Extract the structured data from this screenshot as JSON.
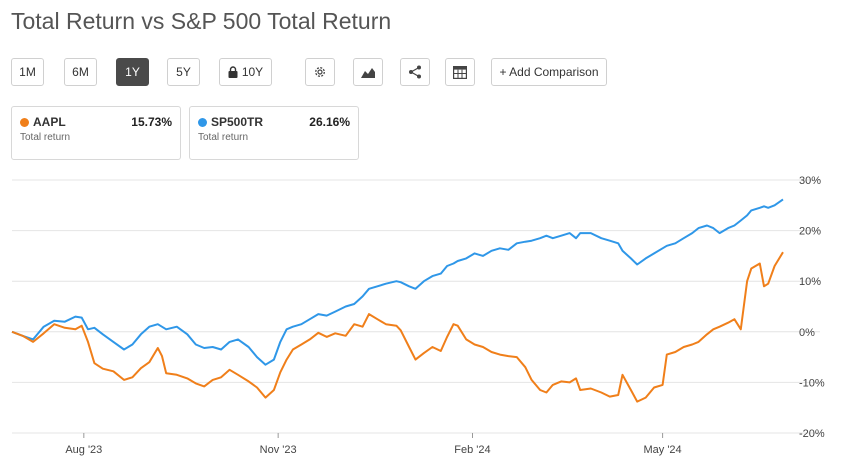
{
  "title": "Total Return vs S&P 500 Total Return",
  "toolbar": {
    "ranges": [
      "1M",
      "6M",
      "1Y",
      "5Y",
      "10Y"
    ],
    "active_range": "1Y",
    "locked_range": "10Y",
    "add_comparison_label": "+ Add Comparison",
    "icons": [
      "gear-icon",
      "chart-type-icon",
      "share-icon",
      "table-icon",
      "lock-icon"
    ]
  },
  "legend": [
    {
      "ticker": "AAPL",
      "value": "15.73%",
      "sublabel": "Total return",
      "color": "#f07f1a"
    },
    {
      "ticker": "SP500TR",
      "value": "26.16%",
      "sublabel": "Total return",
      "color": "#2f97e8"
    }
  ],
  "chart_data": {
    "type": "line",
    "title": "",
    "xlabel": "",
    "ylabel": "",
    "y_unit": "%",
    "ylim": [
      -20,
      30
    ],
    "yticks": [
      30,
      20,
      10,
      0,
      -10,
      -20
    ],
    "ytick_labels": [
      "30%",
      "20%",
      "10%",
      "0%",
      "-10%",
      "-20%"
    ],
    "xlim": [
      "2023-06-28",
      "2024-06-18"
    ],
    "xticks": [
      {
        "date": "2023-08-01",
        "label": "Aug '23"
      },
      {
        "date": "2023-11-01",
        "label": "Nov '23"
      },
      {
        "date": "2024-02-01",
        "label": "Feb '24"
      },
      {
        "date": "2024-05-01",
        "label": "May '24"
      }
    ],
    "grid": true,
    "series": [
      {
        "name": "AAPL",
        "color": "#f07f1a",
        "points": [
          [
            "2023-06-28",
            0
          ],
          [
            "2023-07-03",
            -0.8
          ],
          [
            "2023-07-08",
            -2.0
          ],
          [
            "2023-07-13",
            -0.3
          ],
          [
            "2023-07-18",
            1.5
          ],
          [
            "2023-07-23",
            0.8
          ],
          [
            "2023-07-28",
            0.5
          ],
          [
            "2023-07-31",
            1.2
          ],
          [
            "2023-08-03",
            -2.0
          ],
          [
            "2023-08-06",
            -6.2
          ],
          [
            "2023-08-10",
            -7.3
          ],
          [
            "2023-08-15",
            -7.8
          ],
          [
            "2023-08-20",
            -9.5
          ],
          [
            "2023-08-24",
            -9.0
          ],
          [
            "2023-08-28",
            -7.2
          ],
          [
            "2023-09-01",
            -6.0
          ],
          [
            "2023-09-05",
            -3.2
          ],
          [
            "2023-09-07",
            -4.8
          ],
          [
            "2023-09-09",
            -8.2
          ],
          [
            "2023-09-14",
            -8.5
          ],
          [
            "2023-09-19",
            -9.2
          ],
          [
            "2023-09-23",
            -10.2
          ],
          [
            "2023-09-27",
            -10.8
          ],
          [
            "2023-10-01",
            -9.5
          ],
          [
            "2023-10-05",
            -9.0
          ],
          [
            "2023-10-09",
            -7.5
          ],
          [
            "2023-10-13",
            -8.5
          ],
          [
            "2023-10-18",
            -9.8
          ],
          [
            "2023-10-22",
            -11.0
          ],
          [
            "2023-10-26",
            -13.0
          ],
          [
            "2023-10-30",
            -11.5
          ],
          [
            "2023-11-02",
            -8.0
          ],
          [
            "2023-11-05",
            -5.5
          ],
          [
            "2023-11-08",
            -3.5
          ],
          [
            "2023-11-12",
            -2.5
          ],
          [
            "2023-11-16",
            -1.5
          ],
          [
            "2023-11-20",
            -0.2
          ],
          [
            "2023-11-24",
            -1.0
          ],
          [
            "2023-11-28",
            -0.3
          ],
          [
            "2023-12-03",
            -0.8
          ],
          [
            "2023-12-07",
            1.5
          ],
          [
            "2023-12-11",
            1.0
          ],
          [
            "2023-12-14",
            3.5
          ],
          [
            "2023-12-18",
            2.5
          ],
          [
            "2023-12-22",
            1.5
          ],
          [
            "2023-12-27",
            1.2
          ],
          [
            "2023-12-29",
            0.3
          ],
          [
            "2024-01-02",
            -3.0
          ],
          [
            "2024-01-05",
            -5.5
          ],
          [
            "2024-01-09",
            -4.2
          ],
          [
            "2024-01-13",
            -3.0
          ],
          [
            "2024-01-17",
            -3.8
          ],
          [
            "2024-01-20",
            -1.0
          ],
          [
            "2024-01-23",
            1.5
          ],
          [
            "2024-01-25",
            1.2
          ],
          [
            "2024-01-29",
            -1.5
          ],
          [
            "2024-02-02",
            -2.5
          ],
          [
            "2024-02-06",
            -3.0
          ],
          [
            "2024-02-10",
            -4.0
          ],
          [
            "2024-02-14",
            -4.5
          ],
          [
            "2024-02-18",
            -4.8
          ],
          [
            "2024-02-22",
            -5.0
          ],
          [
            "2024-02-26",
            -7.0
          ],
          [
            "2024-02-29",
            -9.5
          ],
          [
            "2024-03-04",
            -11.5
          ],
          [
            "2024-03-07",
            -12.0
          ],
          [
            "2024-03-10",
            -10.5
          ],
          [
            "2024-03-14",
            -9.8
          ],
          [
            "2024-03-18",
            -10.0
          ],
          [
            "2024-03-21",
            -9.2
          ],
          [
            "2024-03-23",
            -11.5
          ],
          [
            "2024-03-28",
            -11.2
          ],
          [
            "2024-04-02",
            -12.0
          ],
          [
            "2024-04-06",
            -12.8
          ],
          [
            "2024-04-10",
            -12.5
          ],
          [
            "2024-04-12",
            -8.5
          ],
          [
            "2024-04-16",
            -11.5
          ],
          [
            "2024-04-19",
            -13.8
          ],
          [
            "2024-04-23",
            -13.0
          ],
          [
            "2024-04-27",
            -11.0
          ],
          [
            "2024-05-01",
            -10.5
          ],
          [
            "2024-05-03",
            -4.5
          ],
          [
            "2024-05-07",
            -4.0
          ],
          [
            "2024-05-11",
            -3.0
          ],
          [
            "2024-05-15",
            -2.5
          ],
          [
            "2024-05-18",
            -2.0
          ],
          [
            "2024-05-22",
            -0.5
          ],
          [
            "2024-05-25",
            0.5
          ],
          [
            "2024-05-28",
            1.0
          ],
          [
            "2024-06-01",
            1.8
          ],
          [
            "2024-06-04",
            2.5
          ],
          [
            "2024-06-07",
            0.5
          ],
          [
            "2024-06-10",
            10.0
          ],
          [
            "2024-06-12",
            12.5
          ],
          [
            "2024-06-16",
            13.5
          ],
          [
            "2024-06-18",
            9.0
          ],
          [
            "2024-06-20",
            9.5
          ],
          [
            "2024-06-23",
            13.0
          ],
          [
            "2024-06-27",
            15.73
          ]
        ]
      },
      {
        "name": "SP500TR",
        "color": "#2f97e8",
        "points": [
          [
            "2023-06-28",
            0
          ],
          [
            "2023-07-03",
            -0.8
          ],
          [
            "2023-07-08",
            -1.5
          ],
          [
            "2023-07-13",
            1.0
          ],
          [
            "2023-07-18",
            2.2
          ],
          [
            "2023-07-23",
            2.0
          ],
          [
            "2023-07-28",
            3.0
          ],
          [
            "2023-07-31",
            2.8
          ],
          [
            "2023-08-03",
            0.5
          ],
          [
            "2023-08-06",
            0.8
          ],
          [
            "2023-08-10",
            -0.5
          ],
          [
            "2023-08-15",
            -2.0
          ],
          [
            "2023-08-20",
            -3.5
          ],
          [
            "2023-08-24",
            -2.5
          ],
          [
            "2023-08-28",
            -0.5
          ],
          [
            "2023-09-01",
            1.0
          ],
          [
            "2023-09-05",
            1.5
          ],
          [
            "2023-09-09",
            0.5
          ],
          [
            "2023-09-14",
            1.0
          ],
          [
            "2023-09-19",
            -0.5
          ],
          [
            "2023-09-23",
            -2.5
          ],
          [
            "2023-09-27",
            -3.2
          ],
          [
            "2023-10-01",
            -3.0
          ],
          [
            "2023-10-05",
            -3.5
          ],
          [
            "2023-10-09",
            -2.0
          ],
          [
            "2023-10-13",
            -1.5
          ],
          [
            "2023-10-18",
            -3.0
          ],
          [
            "2023-10-22",
            -5.0
          ],
          [
            "2023-10-26",
            -6.5
          ],
          [
            "2023-10-30",
            -5.5
          ],
          [
            "2023-11-02",
            -2.0
          ],
          [
            "2023-11-05",
            0.5
          ],
          [
            "2023-11-08",
            1.0
          ],
          [
            "2023-11-12",
            1.5
          ],
          [
            "2023-11-16",
            2.5
          ],
          [
            "2023-11-20",
            3.5
          ],
          [
            "2023-11-24",
            3.2
          ],
          [
            "2023-11-28",
            4.0
          ],
          [
            "2023-12-03",
            5.0
          ],
          [
            "2023-12-07",
            5.5
          ],
          [
            "2023-12-11",
            7.0
          ],
          [
            "2023-12-14",
            8.5
          ],
          [
            "2023-12-18",
            9.0
          ],
          [
            "2023-12-22",
            9.5
          ],
          [
            "2023-12-27",
            10.0
          ],
          [
            "2023-12-29",
            9.8
          ],
          [
            "2024-01-02",
            9.0
          ],
          [
            "2024-01-05",
            8.5
          ],
          [
            "2024-01-09",
            10.0
          ],
          [
            "2024-01-13",
            11.0
          ],
          [
            "2024-01-17",
            11.5
          ],
          [
            "2024-01-20",
            13.0
          ],
          [
            "2024-01-23",
            13.5
          ],
          [
            "2024-01-25",
            14.0
          ],
          [
            "2024-01-29",
            14.5
          ],
          [
            "2024-02-02",
            15.5
          ],
          [
            "2024-02-06",
            15.0
          ],
          [
            "2024-02-10",
            16.0
          ],
          [
            "2024-02-14",
            16.5
          ],
          [
            "2024-02-18",
            16.2
          ],
          [
            "2024-02-22",
            17.5
          ],
          [
            "2024-02-26",
            17.8
          ],
          [
            "2024-02-29",
            18.0
          ],
          [
            "2024-03-04",
            18.5
          ],
          [
            "2024-03-07",
            19.0
          ],
          [
            "2024-03-10",
            18.5
          ],
          [
            "2024-03-14",
            19.0
          ],
          [
            "2024-03-18",
            19.5
          ],
          [
            "2024-03-21",
            18.5
          ],
          [
            "2024-03-23",
            19.5
          ],
          [
            "2024-03-28",
            19.5
          ],
          [
            "2024-04-02",
            18.5
          ],
          [
            "2024-04-06",
            18.0
          ],
          [
            "2024-04-10",
            17.5
          ],
          [
            "2024-04-12",
            16.0
          ],
          [
            "2024-04-16",
            14.5
          ],
          [
            "2024-04-19",
            13.3
          ],
          [
            "2024-04-23",
            14.5
          ],
          [
            "2024-04-27",
            15.5
          ],
          [
            "2024-05-01",
            16.5
          ],
          [
            "2024-05-03",
            17.0
          ],
          [
            "2024-05-07",
            17.5
          ],
          [
            "2024-05-11",
            18.5
          ],
          [
            "2024-05-15",
            19.5
          ],
          [
            "2024-05-18",
            20.5
          ],
          [
            "2024-05-22",
            21.0
          ],
          [
            "2024-05-25",
            20.5
          ],
          [
            "2024-05-28",
            19.5
          ],
          [
            "2024-06-01",
            20.5
          ],
          [
            "2024-06-04",
            21.0
          ],
          [
            "2024-06-07",
            22.0
          ],
          [
            "2024-06-10",
            23.0
          ],
          [
            "2024-06-12",
            24.0
          ],
          [
            "2024-06-16",
            24.5
          ],
          [
            "2024-06-18",
            24.8
          ],
          [
            "2024-06-20",
            24.5
          ],
          [
            "2024-06-23",
            25.0
          ],
          [
            "2024-06-27",
            26.16
          ]
        ]
      }
    ]
  }
}
